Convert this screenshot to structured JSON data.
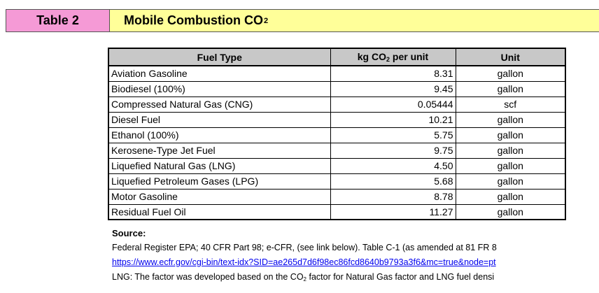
{
  "header": {
    "table_label": "Table 2",
    "title_main": "Mobile Combustion CO",
    "title_sub": "2"
  },
  "table": {
    "columns": {
      "fuel": "Fuel Type",
      "value_pre": "kg CO",
      "value_sub": "2",
      "value_post": " per unit",
      "unit": "Unit"
    },
    "rows": [
      {
        "fuel": "Aviation Gasoline",
        "value": "8.31",
        "unit": "gallon"
      },
      {
        "fuel": "Biodiesel (100%)",
        "value": "9.45",
        "unit": "gallon"
      },
      {
        "fuel": "Compressed Natural Gas (CNG)",
        "value": "0.05444",
        "unit": "scf"
      },
      {
        "fuel": "Diesel Fuel",
        "value": "10.21",
        "unit": "gallon"
      },
      {
        "fuel": "Ethanol (100%)",
        "value": "5.75",
        "unit": "gallon"
      },
      {
        "fuel": "Kerosene-Type Jet Fuel",
        "value": "9.75",
        "unit": "gallon"
      },
      {
        "fuel": "Liquefied Natural Gas (LNG)",
        "value": "4.50",
        "unit": "gallon"
      },
      {
        "fuel": "Liquefied Petroleum Gases (LPG)",
        "value": "5.68",
        "unit": "gallon"
      },
      {
        "fuel": "Motor Gasoline",
        "value": "8.78",
        "unit": "gallon"
      },
      {
        "fuel": "Residual Fuel Oil",
        "value": "11.27",
        "unit": "gallon"
      }
    ]
  },
  "source": {
    "label": "Source:",
    "line1": "Federal Register EPA; 40 CFR Part 98; e-CFR, (see link below). Table C-1 (as amended at 81 FR 8",
    "link": "https://www.ecfr.gov/cgi-bin/text-idx?SID=ae265d7d6f98ec86fcd8640b9793a3f6&mc=true&node=pt",
    "lng_pre": "LNG:  The factor was developed based on the CO",
    "lng_sub": "2",
    "lng_post": " factor for Natural Gas factor and LNG fuel densi"
  },
  "colors": {
    "table_label_bg": "#f59ad6",
    "title_bg": "#ffff99",
    "header_row_bg": "#c8c8c8",
    "link": "#0000ee"
  }
}
